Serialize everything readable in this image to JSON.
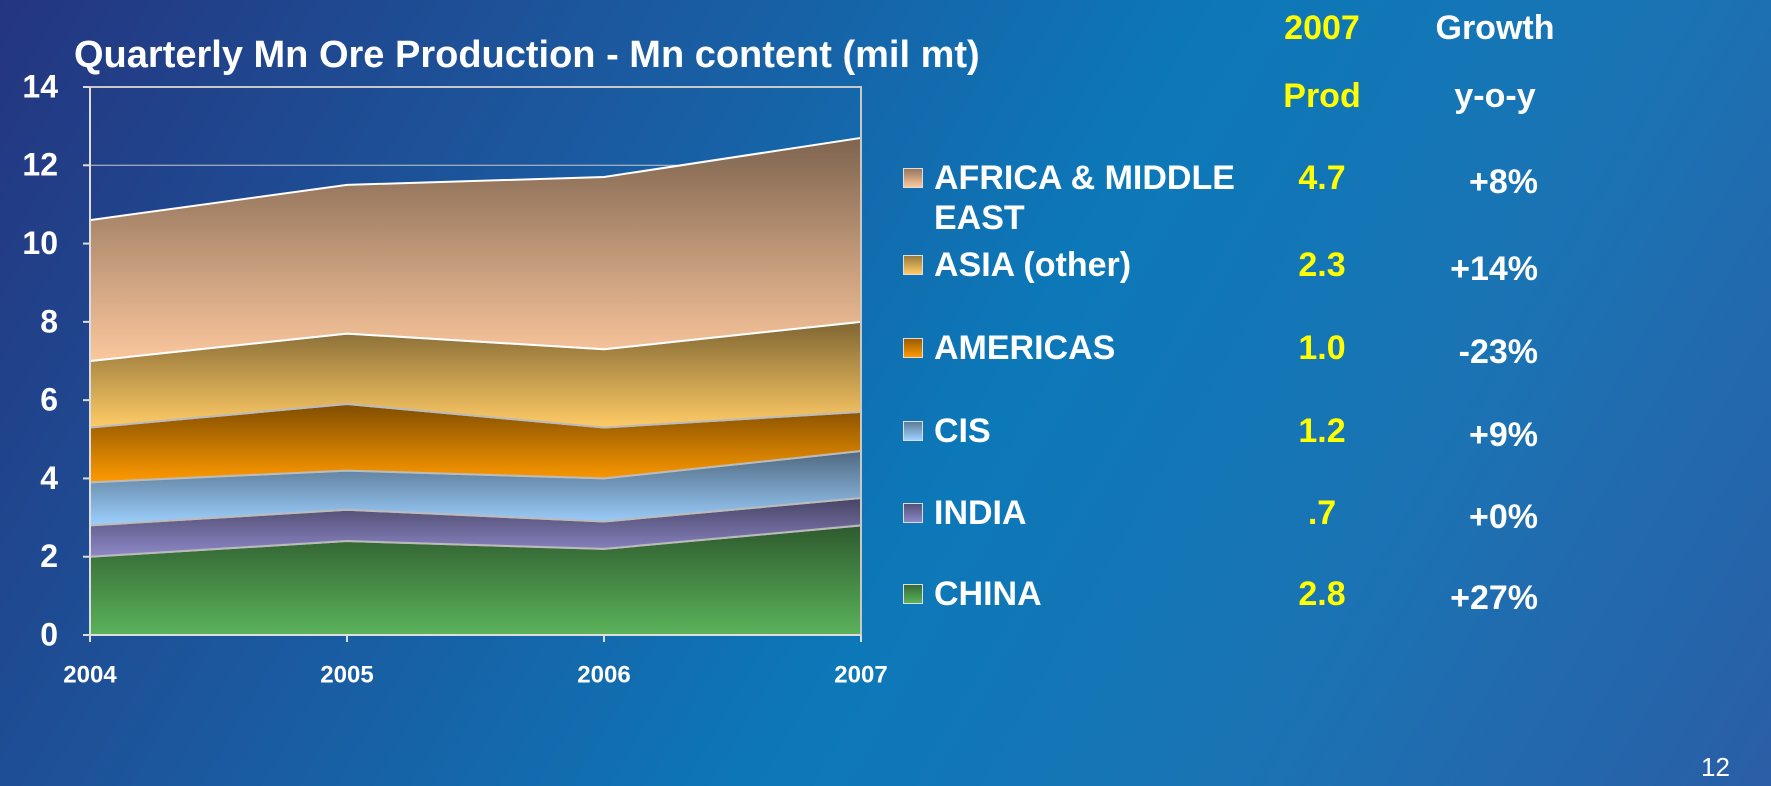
{
  "chart_data": {
    "type": "stacked_area",
    "title": "Quarterly Mn Ore Production - Mn content (mil mt)",
    "x": [
      2004,
      2005,
      2006,
      2007
    ],
    "xlim": [
      2004,
      2007
    ],
    "xticks": [
      2004,
      2005,
      2006,
      2007
    ],
    "ylim": [
      0,
      14
    ],
    "yticks": [
      0,
      2,
      4,
      6,
      8,
      10,
      12,
      14
    ],
    "grid": true,
    "series": [
      {
        "name": "CHINA",
        "color": "#5bb35b",
        "values": [
          2.0,
          2.4,
          2.2,
          2.8
        ]
      },
      {
        "name": "INDIA",
        "color": "#8e88c8",
        "values": [
          0.8,
          0.8,
          0.7,
          0.7
        ]
      },
      {
        "name": "CIS",
        "color": "#9dd0ff",
        "values": [
          1.1,
          1.0,
          1.1,
          1.2
        ]
      },
      {
        "name": "AMERICAS",
        "color": "#ff9a00",
        "values": [
          1.4,
          1.7,
          1.3,
          1.0
        ]
      },
      {
        "name": "ASIA (other)",
        "color": "#ffcb66",
        "values": [
          1.7,
          1.8,
          2.0,
          2.3
        ]
      },
      {
        "name": "AFRICA & MIDDLE EAST",
        "color": "#fbc79d",
        "values": [
          3.6,
          3.8,
          4.4,
          4.7
        ]
      }
    ]
  },
  "table": {
    "columns": [
      [
        "2007",
        "Prod"
      ],
      [
        "Growth",
        "y-o-y"
      ]
    ],
    "rows": [
      [
        "2.8",
        "+27%"
      ],
      [
        ".7",
        "+0%"
      ],
      [
        "1.2",
        "+9%"
      ],
      [
        "1.0",
        "-23%"
      ],
      [
        "2.3",
        "+14%"
      ],
      [
        "4.7",
        "+8%"
      ]
    ]
  },
  "page_number": "12"
}
